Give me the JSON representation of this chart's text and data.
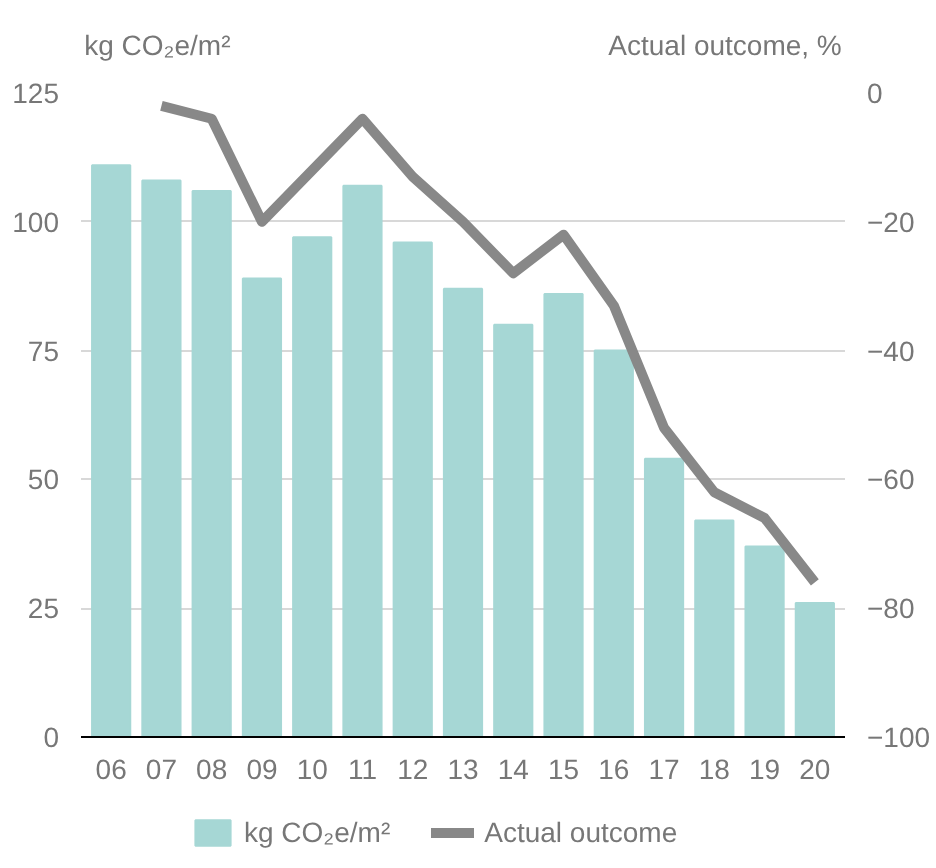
{
  "chart_data": {
    "type": "bar",
    "categories": [
      "06",
      "07",
      "08",
      "09",
      "10",
      "11",
      "12",
      "13",
      "14",
      "15",
      "16",
      "17",
      "18",
      "19",
      "20"
    ],
    "ylabel": "kg CO₂e/m²",
    "y2label": "Actual outcome, %",
    "series": [
      {
        "name": "kg CO₂e/m²",
        "color": "#a6d7d5",
        "values": [
          111,
          108,
          106,
          89,
          97,
          107,
          96,
          87,
          80,
          86,
          75,
          54,
          42,
          37,
          26
        ]
      },
      {
        "name": "Actual outcome",
        "type": "line",
        "axis": "y2",
        "color": "#888888",
        "values": [
          null,
          -2,
          -4,
          -20,
          -12,
          -4,
          -13,
          -20,
          -28,
          -22,
          -33,
          -52,
          -62,
          -66,
          -76
        ]
      }
    ],
    "ylim": [
      0,
      125
    ],
    "yticks": [
      0,
      25,
      50,
      75,
      100,
      125
    ],
    "y2lim": [
      -100,
      0
    ],
    "y2ticks": [
      {
        "value": -100,
        "label": "−100"
      },
      {
        "value": -80,
        "label": "−80"
      },
      {
        "value": -60,
        "label": "−60"
      },
      {
        "value": -40,
        "label": "−40"
      },
      {
        "value": -20,
        "label": "−20"
      },
      0
    ],
    "grid": "y",
    "legend": "bottom"
  }
}
